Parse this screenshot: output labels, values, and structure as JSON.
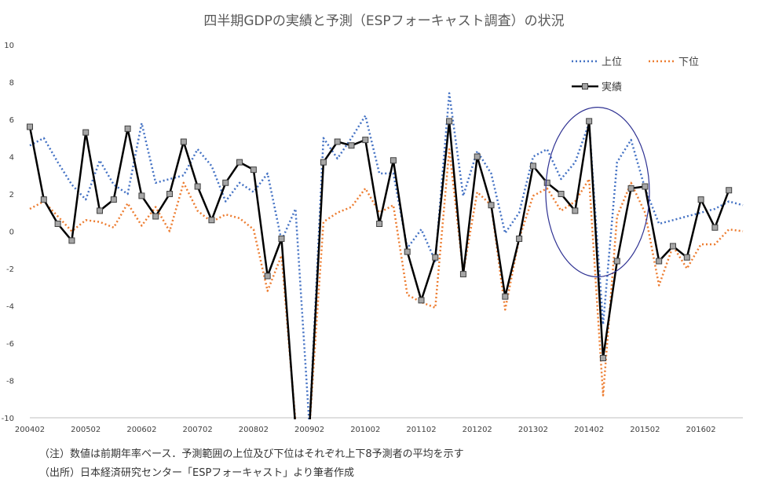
{
  "title": "四半期GDPの実績と予測（ESPフォーキャスト調査）の状況",
  "notes": {
    "note1": "（注）数値は前期年率ベース．予測範囲の上位及び下位はそれぞれ上下8予測者の平均を示す",
    "note2": "（出所）日本経済研究センター「ESPフォーキャスト」より筆者作成"
  },
  "colors": {
    "upper": "#4472C4",
    "lower": "#ED7D31",
    "actual": "#000000",
    "marker_fill": "#A6A6A6",
    "ellipse": "#2E3192",
    "grid": "#D9D9D9"
  },
  "chart_data": {
    "type": "line",
    "title": "四半期GDPの実績と予測（ESPフォーキャスト調査）の状況",
    "xlabel": "",
    "ylabel": "",
    "ylim": [
      -10,
      10
    ],
    "yticks": [
      -10,
      -8,
      -6,
      -4,
      -2,
      0,
      2,
      4,
      6,
      8,
      10
    ],
    "grid": false,
    "legend_position": "top-right",
    "x_tick_labels": [
      "200402",
      "200502",
      "200602",
      "200702",
      "200802",
      "200902",
      "201002",
      "201102",
      "201202",
      "201302",
      "201402",
      "201502",
      "201602"
    ],
    "x": [
      "200402",
      "200403",
      "200404",
      "200501",
      "200502",
      "200503",
      "200504",
      "200601",
      "200602",
      "200603",
      "200604",
      "200701",
      "200702",
      "200703",
      "200704",
      "200801",
      "200802",
      "200803",
      "200804",
      "200901",
      "200902",
      "200903",
      "200904",
      "201001",
      "201002",
      "201003",
      "201004",
      "201101",
      "201102",
      "201103",
      "201104",
      "201201",
      "201202",
      "201203",
      "201204",
      "201301",
      "201302",
      "201303",
      "201304",
      "201401",
      "201402",
      "201403",
      "201404",
      "201501",
      "201502",
      "201503",
      "201504",
      "201601",
      "201602",
      "201603",
      "201604",
      "201701"
    ],
    "series": [
      {
        "name": "上位",
        "style": "dotted",
        "values": [
          4.6,
          5.0,
          3.7,
          2.5,
          1.7,
          3.8,
          2.5,
          2.0,
          5.8,
          2.6,
          2.8,
          3.0,
          4.4,
          3.5,
          1.6,
          2.6,
          2.1,
          3.1,
          -0.5,
          1.2,
          -10.5,
          5.0,
          3.9,
          5.0,
          6.2,
          3.1,
          3.1,
          -0.9,
          0.1,
          -1.6,
          7.4,
          1.9,
          4.3,
          3.1,
          -0.1,
          1.0,
          4.0,
          4.4,
          2.8,
          3.7,
          5.8,
          -5.0,
          3.7,
          4.9,
          2.3,
          0.4,
          0.6,
          0.8,
          1.0,
          1.2,
          1.6,
          1.4
        ]
      },
      {
        "name": "下位",
        "style": "dotted",
        "values": [
          1.2,
          1.6,
          0.8,
          0.0,
          0.6,
          0.5,
          0.2,
          1.5,
          0.3,
          1.3,
          0.0,
          2.6,
          1.1,
          0.5,
          0.9,
          0.7,
          0.1,
          -3.2,
          -1.3,
          -10.2,
          -10.5,
          0.5,
          1.0,
          1.3,
          2.3,
          1.0,
          1.4,
          -3.4,
          -3.8,
          -4.1,
          4.4,
          -2.2,
          2.1,
          1.4,
          -4.2,
          -0.4,
          1.9,
          2.3,
          1.1,
          1.6,
          2.8,
          -8.8,
          0.8,
          2.6,
          1.0,
          -2.9,
          -0.8,
          -2.0,
          -0.7,
          -0.7,
          0.1,
          0.0
        ]
      },
      {
        "name": "実績",
        "style": "solid-marker",
        "values": [
          5.6,
          1.7,
          0.4,
          -0.5,
          5.3,
          1.1,
          1.7,
          5.5,
          1.9,
          0.8,
          2.0,
          4.8,
          2.4,
          0.6,
          2.6,
          3.7,
          3.3,
          -2.4,
          -0.4,
          -10.5,
          -10.5,
          3.7,
          4.8,
          4.6,
          4.9,
          0.4,
          3.8,
          -1.1,
          -3.7,
          -1.4,
          5.9,
          -2.3,
          4.0,
          1.4,
          -3.5,
          -0.4,
          3.5,
          2.6,
          2.0,
          1.1,
          5.9,
          -6.8,
          -1.6,
          2.3,
          2.4,
          -1.6,
          -0.8,
          -1.4,
          1.7,
          0.2,
          2.2,
          null
        ]
      }
    ],
    "annotations": [
      {
        "type": "ellipse",
        "center": [
          "201403",
          2.1
        ],
        "note": "highlight of 2014 period"
      }
    ]
  },
  "legend": {
    "upper": "上位",
    "lower": "下位",
    "actual": "実績"
  }
}
